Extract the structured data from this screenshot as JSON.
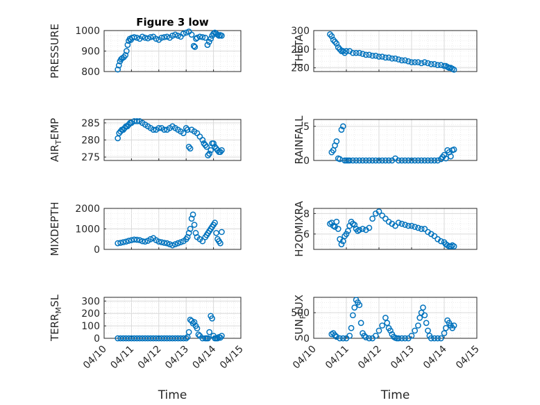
{
  "figure_title": "Figure 3 low",
  "x_axis_label": "Time",
  "x_tick_labels": [
    "04/10",
    "04/11",
    "04/12",
    "04/13",
    "04/14",
    "04/15"
  ],
  "marker_color": "#0072BD",
  "chart_data": [
    {
      "type": "scatter",
      "ylabel": "PRESSURE",
      "xlabel": "",
      "title": "Figure 3 low",
      "ylim": [
        800,
        1000
      ],
      "yticks": [
        800,
        900,
        1000
      ],
      "xlim": [
        0,
        5
      ],
      "grid": "on",
      "x": [
        0.5,
        0.54,
        0.58,
        0.62,
        0.66,
        0.72,
        0.78,
        0.82,
        0.86,
        0.9,
        0.94,
        0.98,
        1.02,
        1.1,
        1.2,
        1.3,
        1.4,
        1.5,
        1.6,
        1.7,
        1.8,
        1.9,
        2.0,
        2.1,
        2.2,
        2.3,
        2.4,
        2.5,
        2.6,
        2.7,
        2.8,
        2.9,
        3.0,
        3.1,
        3.2,
        3.28,
        3.32,
        3.36,
        3.4,
        3.5,
        3.6,
        3.7,
        3.78,
        3.84,
        3.9,
        3.95,
        4.0,
        4.05,
        4.1,
        4.15,
        4.2,
        4.25,
        4.3
      ],
      "y": [
        810,
        830,
        850,
        860,
        865,
        870,
        880,
        900,
        930,
        950,
        960,
        955,
        965,
        968,
        965,
        960,
        970,
        965,
        962,
        968,
        970,
        960,
        955,
        965,
        968,
        970,
        965,
        975,
        980,
        975,
        970,
        985,
        990,
        995,
        980,
        925,
        920,
        960,
        965,
        970,
        968,
        965,
        930,
        945,
        960,
        975,
        985,
        990,
        985,
        980,
        975,
        978,
        975
      ]
    },
    {
      "type": "scatter",
      "ylabel": "THETA",
      "xlabel": "",
      "title": "",
      "ylim": [
        278,
        300
      ],
      "yticks": [
        280,
        290,
        300
      ],
      "xlim": [
        0,
        5
      ],
      "grid": "on",
      "x": [
        0.5,
        0.55,
        0.6,
        0.65,
        0.7,
        0.75,
        0.8,
        0.85,
        0.9,
        0.95,
        1.0,
        1.1,
        1.2,
        1.3,
        1.4,
        1.5,
        1.6,
        1.7,
        1.8,
        1.9,
        2.0,
        2.1,
        2.2,
        2.3,
        2.4,
        2.5,
        2.6,
        2.7,
        2.8,
        2.9,
        3.0,
        3.1,
        3.2,
        3.3,
        3.4,
        3.5,
        3.6,
        3.7,
        3.8,
        3.9,
        4.0,
        4.05,
        4.1,
        4.15,
        4.2,
        4.25,
        4.3
      ],
      "y": [
        298,
        297,
        295,
        294,
        293,
        291,
        290,
        289,
        289,
        288,
        289,
        289,
        288,
        288,
        288,
        287.5,
        287,
        287,
        286.5,
        286.5,
        286,
        286,
        285.5,
        285.5,
        285,
        285,
        284.5,
        284,
        284,
        283.5,
        283,
        283,
        283,
        282.5,
        283,
        282.5,
        282,
        282,
        281.5,
        281.5,
        281,
        281,
        280.5,
        280,
        280,
        279.5,
        279
      ]
    },
    {
      "type": "scatter",
      "ylabel": "AIR_TEMP",
      "xlabel": "",
      "title": "",
      "ylim": [
        274,
        286
      ],
      "yticks": [
        275,
        280,
        285
      ],
      "xlim": [
        0,
        5
      ],
      "grid": "on",
      "x": [
        0.5,
        0.55,
        0.6,
        0.65,
        0.7,
        0.75,
        0.8,
        0.85,
        0.9,
        0.95,
        1.0,
        1.1,
        1.2,
        1.3,
        1.4,
        1.5,
        1.6,
        1.7,
        1.8,
        1.9,
        2.0,
        2.1,
        2.2,
        2.3,
        2.4,
        2.5,
        2.6,
        2.7,
        2.8,
        2.9,
        3.0,
        3.05,
        3.1,
        3.15,
        3.2,
        3.3,
        3.4,
        3.5,
        3.6,
        3.65,
        3.7,
        3.75,
        3.8,
        3.85,
        3.9,
        3.95,
        4.0,
        4.05,
        4.1,
        4.15,
        4.2,
        4.25,
        4.3
      ],
      "y": [
        280.5,
        282,
        282.5,
        283,
        283,
        283.5,
        284,
        284,
        284.5,
        285,
        285,
        285.5,
        285.5,
        285.5,
        285,
        284.5,
        284,
        283.5,
        283,
        283,
        283.5,
        283.5,
        283,
        283,
        283.5,
        284,
        283.5,
        283,
        282.5,
        282,
        283.5,
        283,
        278,
        277.5,
        283,
        282.5,
        282,
        281,
        280,
        279,
        278.5,
        278,
        275.5,
        276,
        277,
        279,
        279,
        278,
        277.5,
        277,
        276.5,
        276.5,
        277
      ]
    },
    {
      "type": "scatter",
      "ylabel": "RAINFALL",
      "xlabel": "",
      "title": "",
      "ylim": [
        0,
        6
      ],
      "yticks": [
        0,
        5
      ],
      "xlim": [
        0,
        5
      ],
      "grid": "on",
      "x": [
        0.55,
        0.6,
        0.65,
        0.7,
        0.75,
        0.8,
        0.85,
        0.9,
        0.95,
        1.0,
        1.05,
        1.1,
        1.2,
        1.3,
        1.4,
        1.5,
        1.6,
        1.7,
        1.8,
        1.9,
        2.0,
        2.1,
        2.2,
        2.3,
        2.4,
        2.5,
        2.6,
        2.7,
        2.8,
        2.9,
        3.0,
        3.1,
        3.2,
        3.3,
        3.4,
        3.5,
        3.6,
        3.7,
        3.8,
        3.9,
        3.95,
        4.0,
        4.05,
        4.1,
        4.15,
        4.2,
        4.25,
        4.3
      ],
      "y": [
        1.2,
        1.5,
        2.2,
        2.8,
        0.3,
        0.2,
        4.5,
        5.0,
        0.0,
        0.0,
        0.0,
        0.0,
        0.0,
        0.0,
        0.0,
        0.0,
        0.0,
        0.0,
        0.0,
        0.0,
        0.0,
        0.0,
        0.0,
        0.0,
        0.0,
        0.3,
        0.0,
        0.0,
        0.0,
        0.0,
        0.0,
        0.0,
        0.0,
        0.0,
        0.0,
        0.0,
        0.0,
        0.0,
        0.0,
        0.2,
        0.5,
        0.8,
        0.3,
        1.5,
        1.2,
        0.6,
        1.5,
        1.6
      ]
    },
    {
      "type": "scatter",
      "ylabel": "MIXDEPTH",
      "xlabel": "",
      "title": "",
      "ylim": [
        0,
        2000
      ],
      "yticks": [
        0,
        1000,
        2000
      ],
      "xlim": [
        0,
        5
      ],
      "grid": "on",
      "x": [
        0.5,
        0.6,
        0.7,
        0.8,
        0.9,
        1.0,
        1.1,
        1.2,
        1.3,
        1.4,
        1.5,
        1.6,
        1.7,
        1.8,
        1.9,
        2.0,
        2.1,
        2.2,
        2.3,
        2.4,
        2.5,
        2.6,
        2.7,
        2.8,
        2.9,
        3.0,
        3.05,
        3.1,
        3.15,
        3.2,
        3.25,
        3.3,
        3.35,
        3.4,
        3.5,
        3.6,
        3.7,
        3.75,
        3.8,
        3.85,
        3.9,
        3.95,
        4.0,
        4.05,
        4.1,
        4.15,
        4.2,
        4.25,
        4.3
      ],
      "y": [
        300,
        320,
        350,
        380,
        420,
        450,
        480,
        470,
        450,
        400,
        380,
        420,
        500,
        550,
        450,
        380,
        350,
        320,
        300,
        250,
        200,
        250,
        300,
        350,
        400,
        500,
        600,
        800,
        1000,
        1500,
        1700,
        1200,
        800,
        600,
        500,
        400,
        600,
        700,
        800,
        900,
        1000,
        1100,
        1200,
        1300,
        800,
        500,
        400,
        300,
        850
      ]
    },
    {
      "type": "scatter",
      "ylabel": "H2OMIXRA",
      "xlabel": "",
      "title": "",
      "ylim": [
        4.5,
        8.5
      ],
      "yticks": [
        6,
        8
      ],
      "xlim": [
        0,
        5
      ],
      "grid": "on",
      "x": [
        0.5,
        0.55,
        0.6,
        0.65,
        0.7,
        0.75,
        0.8,
        0.85,
        0.9,
        0.95,
        1.0,
        1.05,
        1.1,
        1.15,
        1.2,
        1.25,
        1.3,
        1.35,
        1.4,
        1.5,
        1.6,
        1.7,
        1.8,
        1.9,
        2.0,
        2.1,
        2.2,
        2.3,
        2.4,
        2.5,
        2.6,
        2.7,
        2.8,
        2.9,
        3.0,
        3.1,
        3.2,
        3.3,
        3.4,
        3.5,
        3.6,
        3.7,
        3.8,
        3.9,
        4.0,
        4.05,
        4.1,
        4.15,
        4.2,
        4.25,
        4.3
      ],
      "y": [
        7.0,
        7.1,
        6.8,
        6.7,
        7.2,
        6.5,
        5.5,
        5.0,
        5.3,
        5.8,
        6.0,
        6.3,
        6.8,
        7.2,
        7.0,
        6.9,
        6.5,
        6.3,
        6.4,
        6.5,
        6.4,
        6.6,
        7.5,
        8.0,
        8.2,
        7.8,
        7.5,
        7.2,
        7.0,
        6.8,
        7.1,
        7.0,
        6.9,
        6.8,
        6.8,
        6.7,
        6.6,
        6.5,
        6.5,
        6.2,
        6.0,
        5.8,
        5.5,
        5.3,
        5.2,
        5.0,
        4.9,
        4.8,
        4.8,
        4.9,
        4.8
      ]
    },
    {
      "type": "scatter",
      "ylabel": "TERR_MSL",
      "xlabel": "",
      "title": "",
      "ylim": [
        0,
        330
      ],
      "yticks": [
        0,
        100,
        200,
        300
      ],
      "xlim": [
        0,
        5
      ],
      "grid": "on",
      "x": [
        0.5,
        0.6,
        0.7,
        0.8,
        0.9,
        1.0,
        1.1,
        1.2,
        1.3,
        1.4,
        1.5,
        1.6,
        1.7,
        1.8,
        1.9,
        2.0,
        2.1,
        2.2,
        2.3,
        2.4,
        2.5,
        2.6,
        2.7,
        2.8,
        2.9,
        3.0,
        3.05,
        3.1,
        3.15,
        3.2,
        3.25,
        3.3,
        3.35,
        3.4,
        3.45,
        3.5,
        3.6,
        3.7,
        3.75,
        3.8,
        3.85,
        3.9,
        3.95,
        4.0,
        4.05,
        4.1,
        4.15,
        4.2,
        4.25,
        4.3
      ],
      "y": [
        0,
        0,
        0,
        0,
        0,
        0,
        0,
        0,
        0,
        0,
        0,
        0,
        0,
        0,
        0,
        0,
        0,
        0,
        0,
        0,
        0,
        0,
        0,
        0,
        0,
        0,
        10,
        50,
        150,
        140,
        120,
        130,
        100,
        80,
        30,
        20,
        0,
        0,
        0,
        0,
        50,
        180,
        160,
        20,
        0,
        0,
        0,
        10,
        5,
        20
      ]
    },
    {
      "type": "scatter",
      "ylabel": "SUN_FLUX",
      "xlabel": "",
      "title": "",
      "ylim": [
        0,
        800
      ],
      "yticks": [
        0,
        500
      ],
      "xlim": [
        0,
        5
      ],
      "grid": "on",
      "x": [
        0.55,
        0.6,
        0.65,
        0.7,
        0.8,
        0.9,
        1.0,
        1.1,
        1.15,
        1.2,
        1.25,
        1.3,
        1.35,
        1.4,
        1.45,
        1.5,
        1.55,
        1.6,
        1.7,
        1.8,
        1.9,
        2.0,
        2.1,
        2.2,
        2.25,
        2.3,
        2.35,
        2.4,
        2.45,
        2.5,
        2.55,
        2.6,
        2.7,
        2.8,
        2.9,
        3.0,
        3.1,
        3.2,
        3.25,
        3.3,
        3.35,
        3.4,
        3.45,
        3.5,
        3.55,
        3.6,
        3.7,
        3.8,
        3.9,
        4.0,
        4.05,
        4.1,
        4.15,
        4.2,
        4.25,
        4.3
      ],
      "y": [
        80,
        100,
        60,
        30,
        0,
        0,
        0,
        50,
        200,
        450,
        600,
        750,
        700,
        650,
        300,
        100,
        50,
        20,
        0,
        0,
        50,
        150,
        250,
        400,
        300,
        200,
        150,
        80,
        30,
        10,
        0,
        0,
        0,
        0,
        0,
        50,
        150,
        250,
        400,
        500,
        600,
        450,
        300,
        150,
        50,
        0,
        0,
        0,
        0,
        100,
        200,
        350,
        300,
        250,
        200,
        250
      ]
    }
  ]
}
